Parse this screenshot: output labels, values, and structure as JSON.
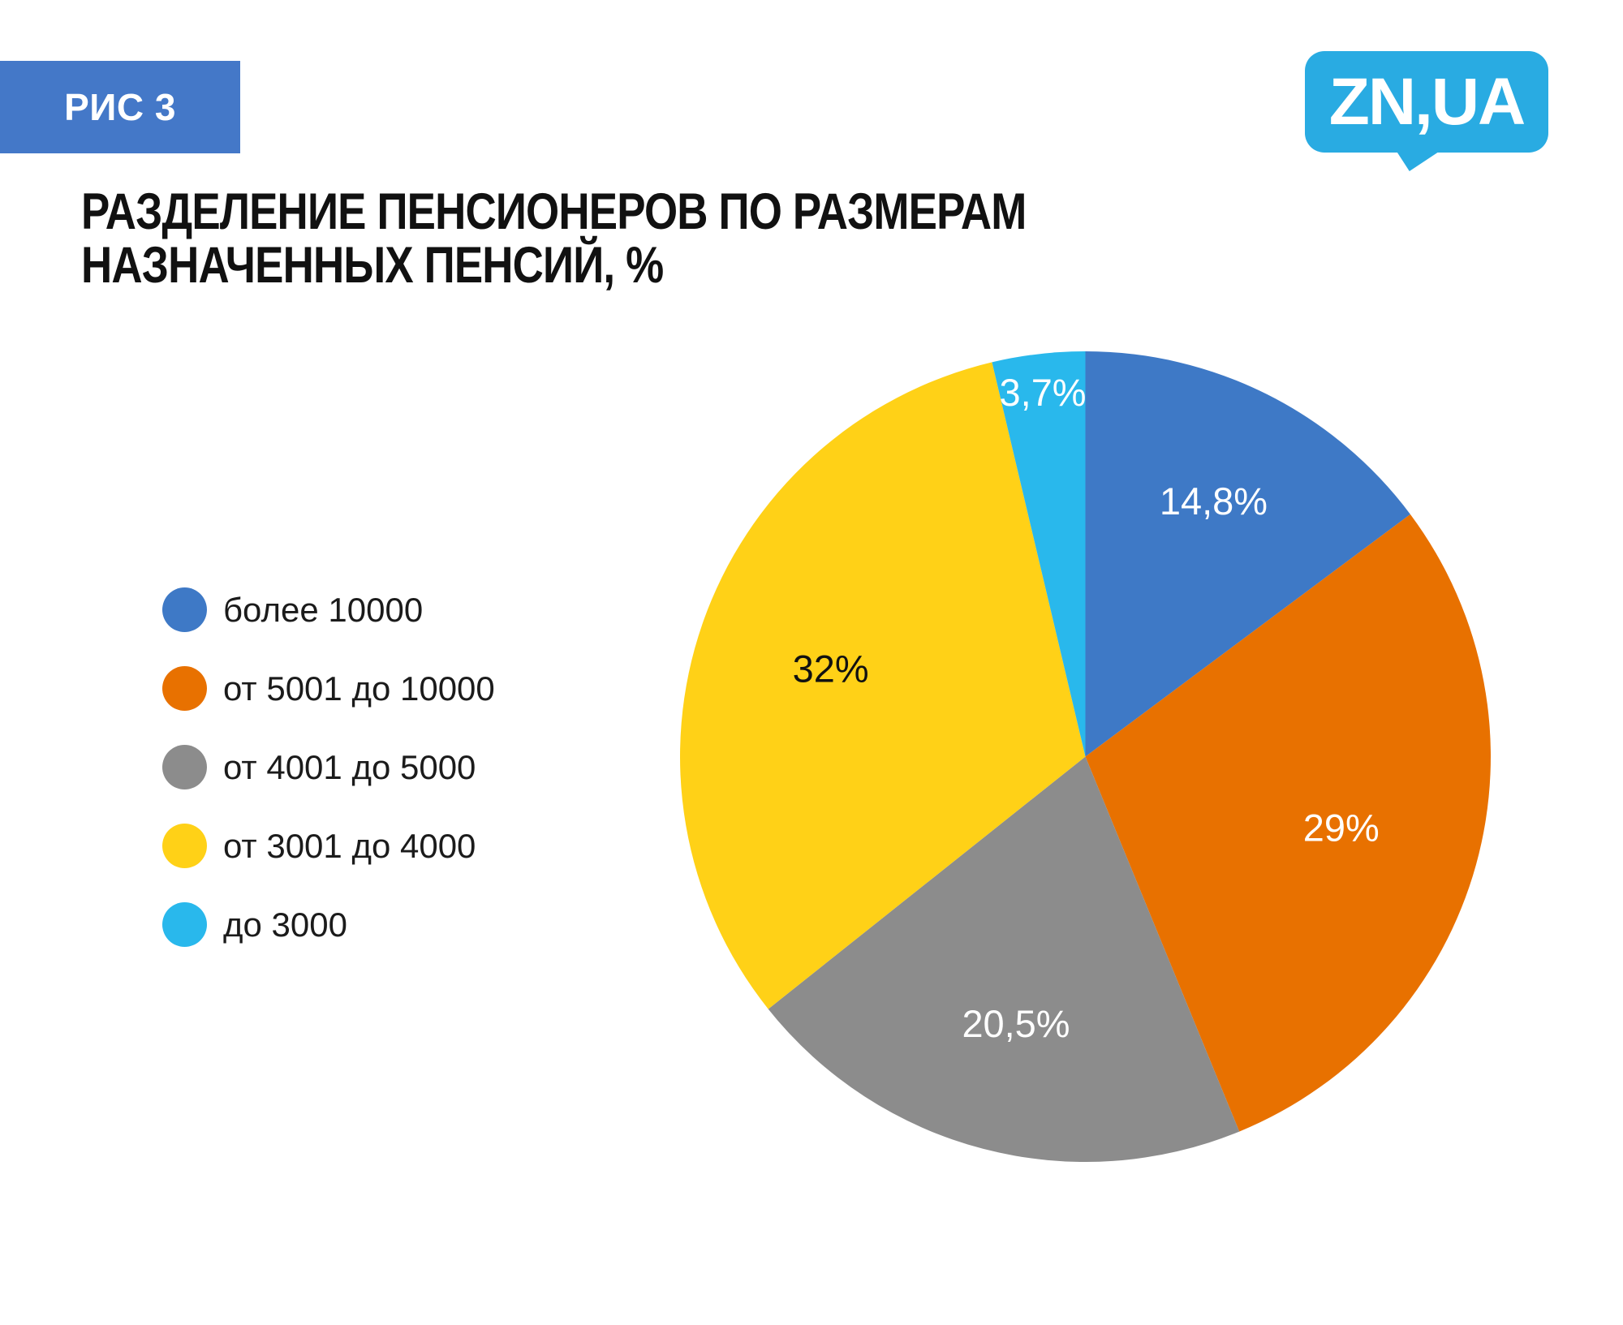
{
  "page": {
    "background": "#FFFFFF"
  },
  "figure_badge": {
    "text": "РИС 3",
    "bg_color": "#4478C8",
    "text_color": "#FFFFFF"
  },
  "title": {
    "line1": "РАЗДЕЛЕНИЕ ПЕНСИОНЕРОВ ПО РАЗМЕРАМ",
    "line2": "НАЗНАЧЕННЫХ ПЕНСИЙ, %",
    "full": "РАЗДЕЛЕНИЕ ПЕНСИОНЕРОВ ПО РАЗМЕРАМ НАЗНАЧЕННЫХ ПЕНСИЙ, %",
    "color": "#111111"
  },
  "logo": {
    "text": "ZN,UA",
    "bg_color": "#29ABE2",
    "text_color": "#FFFFFF"
  },
  "chart_data": {
    "type": "pie",
    "title": "РАЗДЕЛЕНИЕ ПЕНСИОНЕРОВ ПО РАЗМЕРАМ НАЗНАЧЕННЫХ ПЕНСИЙ, %",
    "unit": "%",
    "direction": "clockwise",
    "start_angle_deg": 0,
    "legend_position": "left",
    "categories": [
      "более 10000",
      "от 5001 до 10000",
      "от 4001 до 5000",
      "от 3001 до 4000",
      "до 3000"
    ],
    "values": [
      14.8,
      29,
      20.5,
      32,
      3.7
    ],
    "slices": [
      {
        "label": "более 10000",
        "value": 14.8,
        "display_value": "14,8%",
        "color": "#3E79C6",
        "value_label_color": "#FFFFFF"
      },
      {
        "label": "от 5001 до 10000",
        "value": 29,
        "display_value": "29%",
        "color": "#E87100",
        "value_label_color": "#FFFFFF"
      },
      {
        "label": "от 4001 до 5000",
        "value": 20.5,
        "display_value": "20,5%",
        "color": "#8C8C8C",
        "value_label_color": "#FFFFFF"
      },
      {
        "label": "от 3001 до 4000",
        "value": 32,
        "display_value": "32%",
        "color": "#FFD117",
        "value_label_color": "#111111"
      },
      {
        "label": "до 3000",
        "value": 3.7,
        "display_value": "3,7%",
        "color": "#29B8EC",
        "value_label_color": "#FFFFFF"
      }
    ]
  }
}
